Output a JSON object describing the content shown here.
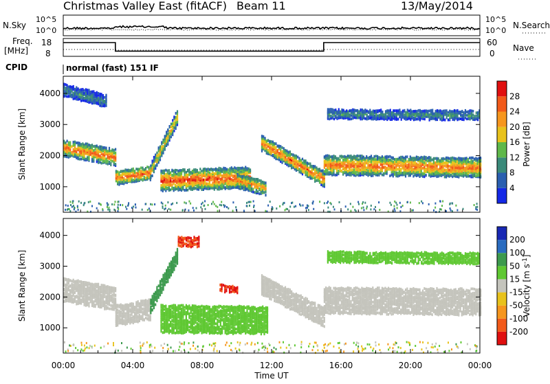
{
  "header": {
    "station": "Christmas Valley East (fitACF)",
    "beam": "Beam 11",
    "date": "13/May/2014"
  },
  "noise_panel": {
    "left_label": "N.Sky",
    "right_label": "N.Search",
    "left_ticks": [
      "10^5",
      "10^0"
    ],
    "right_ticks": [
      "10^5",
      "10^0"
    ]
  },
  "freq_panel": {
    "left_label_1": "Freq.",
    "left_label_2": "[MHz]",
    "right_label": "Nave",
    "left_ticks": [
      "18",
      "8"
    ],
    "right_ticks": [
      "60",
      "0"
    ]
  },
  "cpid": {
    "label": "CPID",
    "mode": "normal (fast) 151 IF"
  },
  "x_axis": {
    "label": "Time UT",
    "ticks": [
      "00:00",
      "04:00",
      "08:00",
      "12:00",
      "16:00",
      "20:00",
      "00:00"
    ]
  },
  "colors": {
    "power": [
      "#1428e6",
      "#2a5fb0",
      "#3a8a7a",
      "#5fb84a",
      "#e8c21c",
      "#f6961e",
      "#f25a1a",
      "#e01010"
    ],
    "velocity": [
      "#e01010",
      "#f25a1a",
      "#f6961e",
      "#e8c21c",
      "#c4c4bc",
      "#5fc832",
      "#3d9a4e",
      "#2a6cc0",
      "#1828b4"
    ]
  },
  "chart_data": [
    {
      "type": "heatmap",
      "title": "",
      "quantity": "Power",
      "xlabel": "",
      "ylabel": "Slant Range [km]",
      "xlim": [
        0,
        24
      ],
      "ylim": [
        180,
        4550
      ],
      "y_ticks": [
        "1000",
        "2000",
        "3000",
        "4000"
      ],
      "colorbar": {
        "label": "Power [dB]",
        "range": [
          0,
          32
        ],
        "ticks": [
          "4",
          "8",
          "12",
          "16",
          "20",
          "24",
          "28"
        ]
      },
      "scatter_bands": [
        {
          "t": [
            0.0,
            3.0
          ],
          "center": [
            2250,
            1950
          ],
          "width": 260,
          "peak": 26
        },
        {
          "t": [
            3.0,
            5.0
          ],
          "center": [
            1300,
            1450
          ],
          "width": 220,
          "peak": 27
        },
        {
          "t": [
            5.0,
            6.6
          ],
          "center": [
            1500,
            3300
          ],
          "width": 230,
          "peak": 20
        },
        {
          "t": [
            5.6,
            10.8
          ],
          "center": [
            1200,
            1300
          ],
          "width": 320,
          "peak": 28
        },
        {
          "t": [
            10.0,
            11.7
          ],
          "center": [
            1200,
            950
          ],
          "width": 220,
          "peak": 24
        },
        {
          "t": [
            11.4,
            15.0
          ],
          "center": [
            2400,
            1250
          ],
          "width": 230,
          "peak": 26
        },
        {
          "t": [
            15.0,
            24.0
          ],
          "center": [
            1700,
            1620
          ],
          "width": 300,
          "peak": 26
        },
        {
          "t": [
            15.2,
            24.0
          ],
          "center": [
            3350,
            3300
          ],
          "width": 150,
          "peak": 11
        },
        {
          "t": [
            0.0,
            2.5
          ],
          "center": [
            4100,
            3750
          ],
          "width": 180,
          "peak": 10
        }
      ]
    },
    {
      "type": "heatmap",
      "title": "",
      "quantity": "Velocity",
      "xlabel": "Time UT",
      "ylabel": "Slant Range [km]",
      "xlim": [
        0,
        24
      ],
      "ylim": [
        180,
        4550
      ],
      "y_ticks": [
        "1000",
        "2000",
        "3000",
        "4000"
      ],
      "colorbar": {
        "label": "Velocity [m s-1]",
        "range": [
          -250,
          250
        ],
        "ticks": [
          "-200",
          "-100",
          "-50",
          "-15",
          "15",
          "50",
          "100",
          "200"
        ]
      },
      "scatter_bands": [
        {
          "t": [
            0.0,
            3.0
          ],
          "center": [
            2250,
            1950
          ],
          "width": 380,
          "vel": 0
        },
        {
          "t": [
            3.0,
            5.0
          ],
          "center": [
            1400,
            1600
          ],
          "width": 320,
          "vel": 0
        },
        {
          "t": [
            5.0,
            6.6
          ],
          "center": [
            1700,
            3400
          ],
          "width": 230,
          "vel": 70
        },
        {
          "t": [
            5.6,
            11.8
          ],
          "center": [
            1300,
            1250
          ],
          "width": 440,
          "vel": 30
        },
        {
          "t": [
            11.4,
            15.0
          ],
          "center": [
            2400,
            1350
          ],
          "width": 300,
          "vel": 0
        },
        {
          "t": [
            15.0,
            24.0
          ],
          "center": [
            1900,
            1850
          ],
          "width": 420,
          "vel": 0
        },
        {
          "t": [
            15.2,
            24.0
          ],
          "center": [
            3300,
            3250
          ],
          "width": 160,
          "vel": 40
        },
        {
          "t": [
            6.6,
            7.8
          ],
          "center": [
            3800,
            3800
          ],
          "width": 150,
          "vel": -200
        },
        {
          "t": [
            9.0,
            10.0
          ],
          "center": [
            2300,
            2250
          ],
          "width": 100,
          "vel": -200
        }
      ]
    }
  ]
}
